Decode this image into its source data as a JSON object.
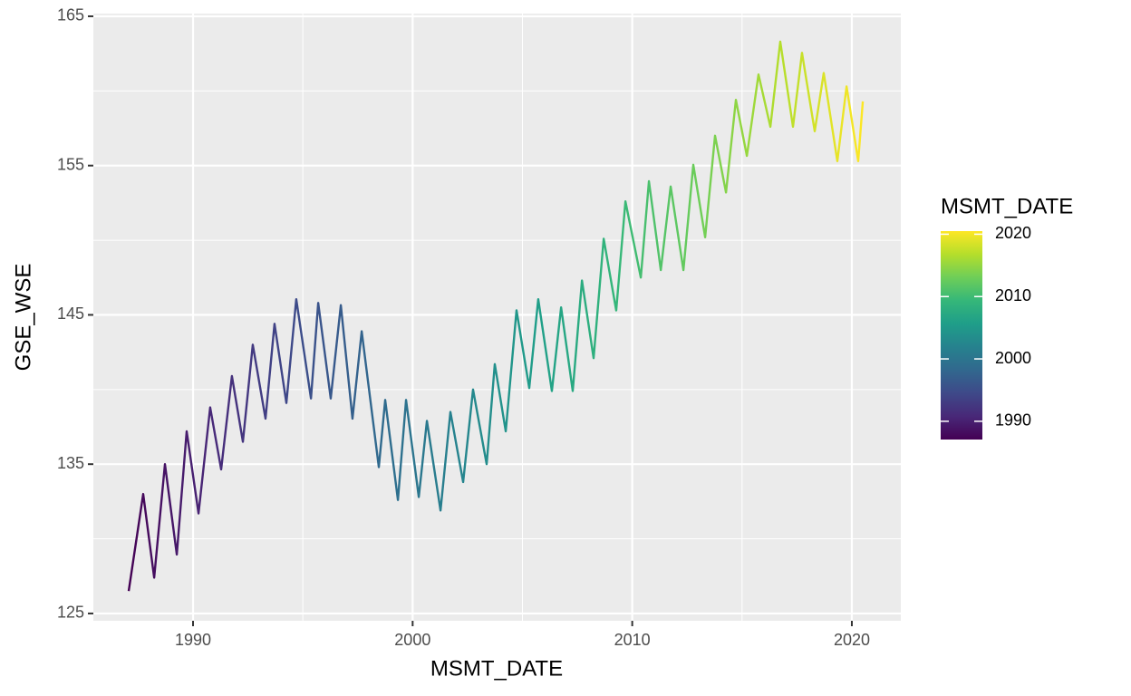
{
  "chart_data": {
    "type": "line",
    "x_label": "MSMT_DATE",
    "y_label": "GSE_WSE",
    "x": [
      1987.07,
      1987.73,
      1988.23,
      1988.72,
      1989.26,
      1989.71,
      1990.25,
      1990.78,
      1991.28,
      1991.77,
      1992.27,
      1992.72,
      1993.3,
      1993.71,
      1994.25,
      1994.7,
      1995.37,
      1995.7,
      1996.27,
      1996.73,
      1997.26,
      1997.68,
      1998.46,
      1998.75,
      1999.33,
      1999.7,
      2000.28,
      2000.65,
      2001.27,
      2001.72,
      2002.3,
      2002.75,
      2003.37,
      2003.74,
      2004.24,
      2004.73,
      2005.31,
      2005.72,
      2006.34,
      2006.76,
      2007.29,
      2007.71,
      2008.24,
      2008.7,
      2009.27,
      2009.69,
      2010.39,
      2010.76,
      2011.3,
      2011.75,
      2012.33,
      2012.78,
      2013.32,
      2013.77,
      2014.27,
      2014.72,
      2015.22,
      2015.75,
      2016.29,
      2016.74,
      2017.32,
      2017.73,
      2018.31,
      2018.72,
      2019.34,
      2019.76,
      2020.29,
      2020.5
    ],
    "values": [
      126.5,
      133.0,
      127.4,
      135.0,
      128.95,
      137.2,
      131.7,
      138.8,
      134.65,
      140.9,
      136.5,
      143.0,
      138.05,
      144.4,
      139.1,
      146.05,
      139.4,
      145.8,
      139.4,
      145.65,
      138.05,
      143.9,
      134.8,
      139.3,
      132.6,
      139.3,
      132.8,
      137.9,
      131.9,
      138.5,
      133.8,
      140.0,
      135.0,
      141.7,
      137.2,
      145.3,
      140.1,
      146.05,
      139.9,
      145.5,
      139.9,
      147.3,
      142.1,
      150.1,
      145.3,
      152.6,
      147.5,
      153.95,
      148.0,
      153.6,
      148.0,
      155.05,
      150.2,
      157.0,
      153.2,
      159.4,
      155.65,
      161.1,
      157.6,
      163.3,
      157.6,
      162.55,
      157.3,
      161.2,
      155.3,
      160.3,
      155.3,
      159.3
    ],
    "xlim": [
      1985.46,
      2022.23
    ],
    "xticks": [
      1990,
      2000,
      2010,
      2020
    ],
    "x_minor_ticks": [
      1995,
      2005,
      2015
    ],
    "ylim": [
      124.51,
      165.18
    ],
    "yticks": [
      125,
      135,
      145,
      155,
      165
    ],
    "y_minor_ticks": [
      130,
      140,
      150,
      160
    ],
    "grid": true,
    "color_scale": {
      "title": "MSMT_DATE",
      "lim": [
        1987.07,
        2020.5
      ],
      "ticks": [
        1990,
        2000,
        2010,
        2020
      ],
      "colors": [
        "#440154",
        "#482878",
        "#3e4989",
        "#31688e",
        "#26828e",
        "#1f9e89",
        "#35b779",
        "#6ece58",
        "#b5de2b",
        "#fde725"
      ]
    }
  }
}
